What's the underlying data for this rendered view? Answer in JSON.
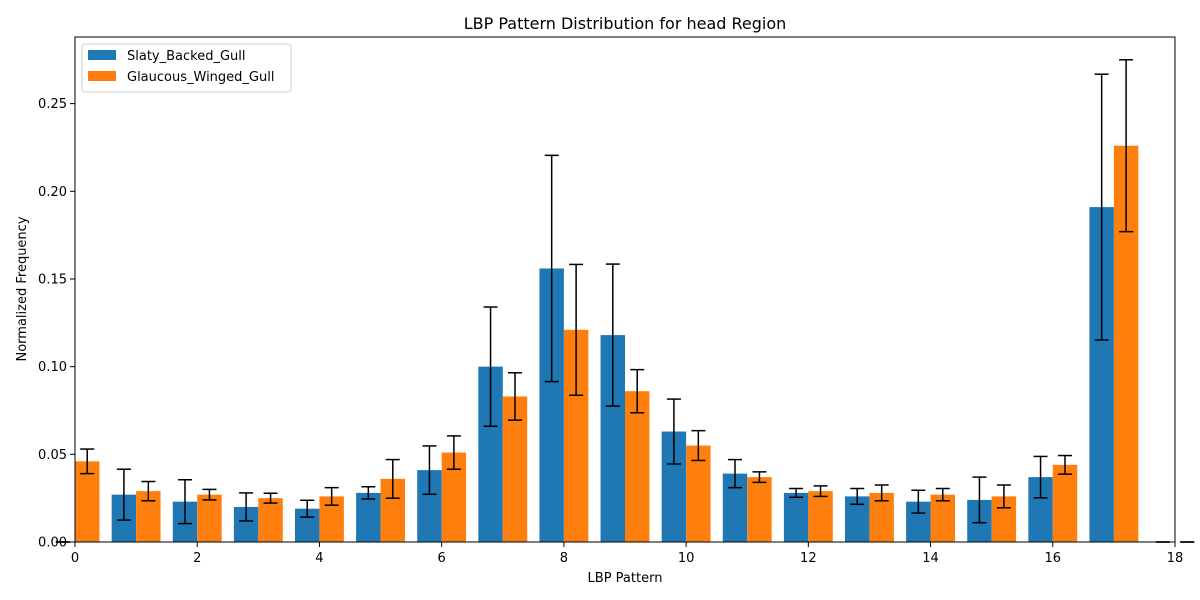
{
  "chart_data": {
    "type": "bar",
    "title": "LBP Pattern Distribution for head Region",
    "xlabel": "LBP Pattern",
    "ylabel": "Normalized Frequency",
    "xlim": [
      0,
      18
    ],
    "ylim": [
      0,
      0.288
    ],
    "xticks": [
      0,
      2,
      4,
      6,
      8,
      10,
      12,
      14,
      16,
      18
    ],
    "xtick_labels": [
      "0",
      "2",
      "4",
      "6",
      "8",
      "10",
      "12",
      "14",
      "16",
      "18"
    ],
    "yticks": [
      0.0,
      0.05,
      0.1,
      0.15,
      0.2,
      0.25
    ],
    "ytick_labels": [
      "0.00",
      "0.05",
      "0.10",
      "0.15",
      "0.20",
      "0.25"
    ],
    "grid": false,
    "legend_position": "top-left",
    "bar_width": 0.4,
    "x": [
      0,
      1,
      2,
      3,
      4,
      5,
      6,
      7,
      8,
      9,
      10,
      11,
      12,
      13,
      14,
      15,
      16,
      17,
      18
    ],
    "series": [
      {
        "name": "Slaty_Backed_Gull",
        "color": "#1f77b4",
        "offset": -0.2,
        "values": [
          0.0,
          0.027,
          0.023,
          0.02,
          0.019,
          0.028,
          0.041,
          0.1,
          0.156,
          0.118,
          0.063,
          0.039,
          0.028,
          0.026,
          0.023,
          0.024,
          0.037,
          0.191,
          0.0
        ],
        "errors": [
          0.0,
          0.0145,
          0.0125,
          0.008,
          0.0048,
          0.0035,
          0.0138,
          0.034,
          0.0645,
          0.0405,
          0.0185,
          0.008,
          0.0025,
          0.0045,
          0.0065,
          0.013,
          0.0118,
          0.0758,
          0.0
        ]
      },
      {
        "name": "Glaucous_Winged_Gull",
        "color": "#ff7f0e",
        "offset": 0.2,
        "values": [
          0.046,
          0.029,
          0.027,
          0.025,
          0.026,
          0.036,
          0.051,
          0.083,
          0.121,
          0.086,
          0.055,
          0.037,
          0.029,
          0.028,
          0.027,
          0.026,
          0.044,
          0.226,
          0.0
        ],
        "errors": [
          0.007,
          0.0055,
          0.003,
          0.0028,
          0.005,
          0.011,
          0.0095,
          0.0135,
          0.0373,
          0.0123,
          0.0085,
          0.003,
          0.003,
          0.0045,
          0.0035,
          0.0065,
          0.0053,
          0.049,
          0.0
        ]
      }
    ]
  }
}
